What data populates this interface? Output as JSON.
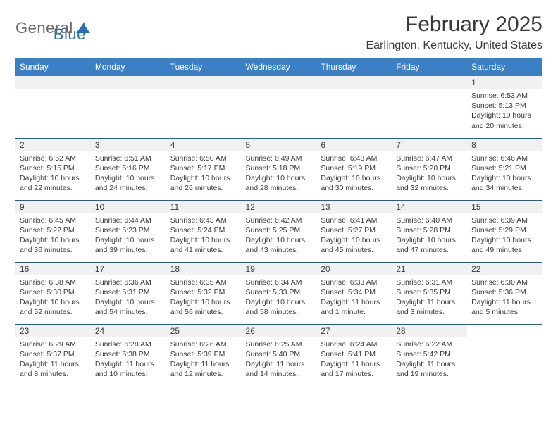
{
  "brand": {
    "word1": "General",
    "word2": "Blue"
  },
  "header": {
    "title": "February 2025",
    "location": "Earlington, Kentucky, United States"
  },
  "weekdays": [
    "Sunday",
    "Monday",
    "Tuesday",
    "Wednesday",
    "Thursday",
    "Friday",
    "Saturday"
  ],
  "colors": {
    "header_bar": "#3b7fc4",
    "rule": "#2b5b8a",
    "daynum_bg": "#f1f1f1",
    "text": "#3a3a3a",
    "brand_blue": "#2b6fb0"
  },
  "weeks": [
    [
      null,
      null,
      null,
      null,
      null,
      null,
      {
        "n": "1",
        "sr": "Sunrise: 6:53 AM",
        "ss": "Sunset: 5:13 PM",
        "d1": "Daylight: 10 hours",
        "d2": "and 20 minutes."
      }
    ],
    [
      {
        "n": "2",
        "sr": "Sunrise: 6:52 AM",
        "ss": "Sunset: 5:15 PM",
        "d1": "Daylight: 10 hours",
        "d2": "and 22 minutes."
      },
      {
        "n": "3",
        "sr": "Sunrise: 6:51 AM",
        "ss": "Sunset: 5:16 PM",
        "d1": "Daylight: 10 hours",
        "d2": "and 24 minutes."
      },
      {
        "n": "4",
        "sr": "Sunrise: 6:50 AM",
        "ss": "Sunset: 5:17 PM",
        "d1": "Daylight: 10 hours",
        "d2": "and 26 minutes."
      },
      {
        "n": "5",
        "sr": "Sunrise: 6:49 AM",
        "ss": "Sunset: 5:18 PM",
        "d1": "Daylight: 10 hours",
        "d2": "and 28 minutes."
      },
      {
        "n": "6",
        "sr": "Sunrise: 6:48 AM",
        "ss": "Sunset: 5:19 PM",
        "d1": "Daylight: 10 hours",
        "d2": "and 30 minutes."
      },
      {
        "n": "7",
        "sr": "Sunrise: 6:47 AM",
        "ss": "Sunset: 5:20 PM",
        "d1": "Daylight: 10 hours",
        "d2": "and 32 minutes."
      },
      {
        "n": "8",
        "sr": "Sunrise: 6:46 AM",
        "ss": "Sunset: 5:21 PM",
        "d1": "Daylight: 10 hours",
        "d2": "and 34 minutes."
      }
    ],
    [
      {
        "n": "9",
        "sr": "Sunrise: 6:45 AM",
        "ss": "Sunset: 5:22 PM",
        "d1": "Daylight: 10 hours",
        "d2": "and 36 minutes."
      },
      {
        "n": "10",
        "sr": "Sunrise: 6:44 AM",
        "ss": "Sunset: 5:23 PM",
        "d1": "Daylight: 10 hours",
        "d2": "and 39 minutes."
      },
      {
        "n": "11",
        "sr": "Sunrise: 6:43 AM",
        "ss": "Sunset: 5:24 PM",
        "d1": "Daylight: 10 hours",
        "d2": "and 41 minutes."
      },
      {
        "n": "12",
        "sr": "Sunrise: 6:42 AM",
        "ss": "Sunset: 5:25 PM",
        "d1": "Daylight: 10 hours",
        "d2": "and 43 minutes."
      },
      {
        "n": "13",
        "sr": "Sunrise: 6:41 AM",
        "ss": "Sunset: 5:27 PM",
        "d1": "Daylight: 10 hours",
        "d2": "and 45 minutes."
      },
      {
        "n": "14",
        "sr": "Sunrise: 6:40 AM",
        "ss": "Sunset: 5:28 PM",
        "d1": "Daylight: 10 hours",
        "d2": "and 47 minutes."
      },
      {
        "n": "15",
        "sr": "Sunrise: 6:39 AM",
        "ss": "Sunset: 5:29 PM",
        "d1": "Daylight: 10 hours",
        "d2": "and 49 minutes."
      }
    ],
    [
      {
        "n": "16",
        "sr": "Sunrise: 6:38 AM",
        "ss": "Sunset: 5:30 PM",
        "d1": "Daylight: 10 hours",
        "d2": "and 52 minutes."
      },
      {
        "n": "17",
        "sr": "Sunrise: 6:36 AM",
        "ss": "Sunset: 5:31 PM",
        "d1": "Daylight: 10 hours",
        "d2": "and 54 minutes."
      },
      {
        "n": "18",
        "sr": "Sunrise: 6:35 AM",
        "ss": "Sunset: 5:32 PM",
        "d1": "Daylight: 10 hours",
        "d2": "and 56 minutes."
      },
      {
        "n": "19",
        "sr": "Sunrise: 6:34 AM",
        "ss": "Sunset: 5:33 PM",
        "d1": "Daylight: 10 hours",
        "d2": "and 58 minutes."
      },
      {
        "n": "20",
        "sr": "Sunrise: 6:33 AM",
        "ss": "Sunset: 5:34 PM",
        "d1": "Daylight: 11 hours",
        "d2": "and 1 minute."
      },
      {
        "n": "21",
        "sr": "Sunrise: 6:31 AM",
        "ss": "Sunset: 5:35 PM",
        "d1": "Daylight: 11 hours",
        "d2": "and 3 minutes."
      },
      {
        "n": "22",
        "sr": "Sunrise: 6:30 AM",
        "ss": "Sunset: 5:36 PM",
        "d1": "Daylight: 11 hours",
        "d2": "and 5 minutes."
      }
    ],
    [
      {
        "n": "23",
        "sr": "Sunrise: 6:29 AM",
        "ss": "Sunset: 5:37 PM",
        "d1": "Daylight: 11 hours",
        "d2": "and 8 minutes."
      },
      {
        "n": "24",
        "sr": "Sunrise: 6:28 AM",
        "ss": "Sunset: 5:38 PM",
        "d1": "Daylight: 11 hours",
        "d2": "and 10 minutes."
      },
      {
        "n": "25",
        "sr": "Sunrise: 6:26 AM",
        "ss": "Sunset: 5:39 PM",
        "d1": "Daylight: 11 hours",
        "d2": "and 12 minutes."
      },
      {
        "n": "26",
        "sr": "Sunrise: 6:25 AM",
        "ss": "Sunset: 5:40 PM",
        "d1": "Daylight: 11 hours",
        "d2": "and 14 minutes."
      },
      {
        "n": "27",
        "sr": "Sunrise: 6:24 AM",
        "ss": "Sunset: 5:41 PM",
        "d1": "Daylight: 11 hours",
        "d2": "and 17 minutes."
      },
      {
        "n": "28",
        "sr": "Sunrise: 6:22 AM",
        "ss": "Sunset: 5:42 PM",
        "d1": "Daylight: 11 hours",
        "d2": "and 19 minutes."
      },
      null
    ]
  ]
}
